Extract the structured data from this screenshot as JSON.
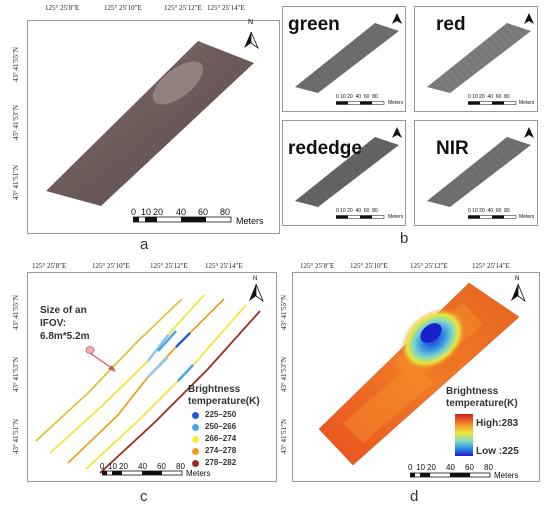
{
  "panels": {
    "a": {
      "letter": "a",
      "top_coords": [
        "125° 25′8″E",
        "125° 25′10″E",
        "125° 25′12″E",
        "125° 25′14″E"
      ],
      "left_coords": [
        "43° 41′55″N",
        "43° 41′53″N",
        "43° 41′51″N"
      ],
      "scale_ticks": [
        "0",
        "10",
        "20",
        "40",
        "60",
        "80"
      ],
      "scale_unit": "Meters",
      "north": "N"
    },
    "b": {
      "letter": "b",
      "bands": [
        {
          "name": "green",
          "scale_ticks": [
            "0",
            "10",
            "20",
            "40",
            "60",
            "80"
          ],
          "scale_unit": "Meters"
        },
        {
          "name": "red",
          "scale_ticks": [
            "0",
            "10",
            "20",
            "40",
            "60",
            "80"
          ],
          "scale_unit": "Meters"
        },
        {
          "name": "rededge",
          "scale_ticks": [
            "0",
            "10",
            "20",
            "40",
            "60",
            "80"
          ],
          "scale_unit": "Meters"
        },
        {
          "name": "NIR",
          "scale_ticks": [
            "0",
            "10",
            "20",
            "40",
            "60",
            "80"
          ],
          "scale_unit": "Meters"
        }
      ],
      "north": "N"
    },
    "c": {
      "letter": "c",
      "top_coords": [
        "125° 25′8″E",
        "125° 25′10″E",
        "125° 25′12″E",
        "125° 25′14″E"
      ],
      "left_coords": [
        "43° 41′55″N",
        "43° 41′53″N",
        "43° 41′51″N"
      ],
      "ifov_label_line1": "Size of an",
      "ifov_label_line2": "IFOV:",
      "ifov_label_line3": "6.8m*5.2m",
      "legend_title": "Brightness",
      "legend_title2": "temperature(K)",
      "legend": [
        {
          "label": "225–250",
          "color": "#1f5fd6"
        },
        {
          "label": "250–266",
          "color": "#4aa6e8"
        },
        {
          "label": "266–274",
          "color": "#f2ee3a"
        },
        {
          "label": "274–278",
          "color": "#e8a21f"
        },
        {
          "label": "278–282",
          "color": "#9b2d1e"
        }
      ],
      "scale_ticks": [
        "0",
        "10",
        "20",
        "40",
        "60",
        "80"
      ],
      "scale_unit": "Meters",
      "north": "N"
    },
    "d": {
      "letter": "d",
      "top_coords": [
        "125° 25′8″E",
        "125° 25′10″E",
        "125° 25′12″E",
        "125° 25′14″E"
      ],
      "left_coords": [
        "43° 41′55″N",
        "43° 41′53″N",
        "43° 41′51″N"
      ],
      "legend_title": "Brightness",
      "legend_title2": "temperature(K)",
      "legend_high": "High:283",
      "legend_low": "Low :225",
      "scale_ticks": [
        "0",
        "10",
        "20",
        "40",
        "60",
        "80"
      ],
      "scale_unit": "Meters",
      "north": "N"
    }
  }
}
